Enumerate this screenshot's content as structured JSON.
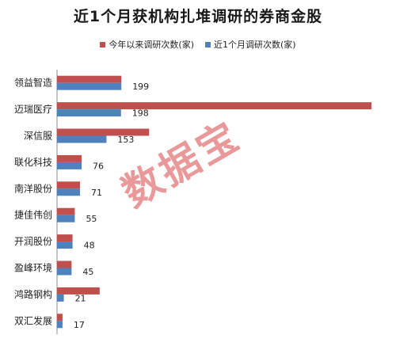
{
  "chart_data": {
    "type": "bar",
    "orientation": "horizontal",
    "title": "近1个月获机构扎堆调研的券商金股",
    "categories": [
      "领益智造",
      "迈瑞医疗",
      "深信服",
      "联化科技",
      "南洋股份",
      "捷佳伟创",
      "开润股份",
      "盈峰环境",
      "鸿路钢构",
      "双汇发展"
    ],
    "series": [
      {
        "name": "今年以来调研次数(家)",
        "color": "#c0504d",
        "values": [
          199,
          973,
          285,
          76,
          71,
          55,
          48,
          45,
          132,
          17
        ]
      },
      {
        "name": "近1个月调研次数(家)",
        "color": "#4f81bd",
        "values": [
          199,
          198,
          153,
          76,
          71,
          55,
          48,
          45,
          21,
          17
        ]
      }
    ],
    "xlim": [
      0,
      1000
    ],
    "grid": false,
    "legend_position": "top"
  },
  "watermark": "数据宝"
}
